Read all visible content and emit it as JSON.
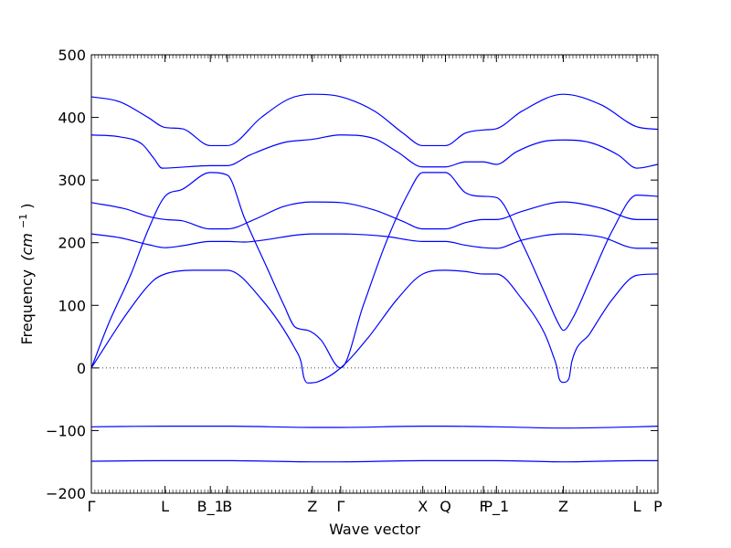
{
  "chart_data": {
    "type": "line",
    "title": "",
    "xlabel": "Wave vector",
    "ylabel": "Frequency",
    "ylabel_unit": "(cm",
    "ylabel_exp": "−1",
    "ylabel_close": ")",
    "ylim": [
      -200,
      500
    ],
    "yticks": [
      -200,
      -100,
      0,
      100,
      200,
      300,
      400,
      500
    ],
    "ytick_labels": [
      "−200",
      "−100",
      "0",
      "100",
      "200",
      "300",
      "400",
      "500"
    ],
    "zero_line": true,
    "grid": false,
    "legend": "none",
    "line_color": "#0000ff",
    "path_length": 100,
    "high_symmetry_points": [
      {
        "label": "Γ",
        "position": 0
      },
      {
        "label": "L",
        "position": 13
      },
      {
        "label": "B_1",
        "position": 21
      },
      {
        "label": "B",
        "position": 24
      },
      {
        "label": "Z",
        "position": 39
      },
      {
        "label": "Γ",
        "position": 44
      },
      {
        "label": "X",
        "position": 58.5
      },
      {
        "label": "Q",
        "position": 62.5
      },
      {
        "label": "F",
        "position": 69.2
      },
      {
        "label": "P_1",
        "position": 71.5
      },
      {
        "label": "Z",
        "position": 83.3
      },
      {
        "label": "L",
        "position": 96.3
      },
      {
        "label": "P",
        "position": 100
      }
    ],
    "series": [
      {
        "points": [
          [
            0,
            -149
          ],
          [
            13,
            -148
          ],
          [
            24,
            -148
          ],
          [
            39,
            -150
          ],
          [
            44,
            -150
          ],
          [
            58.5,
            -148
          ],
          [
            62.5,
            -148
          ],
          [
            71.5,
            -148
          ],
          [
            83.3,
            -150
          ],
          [
            96.3,
            -148
          ],
          [
            100,
            -148
          ]
        ]
      },
      {
        "points": [
          [
            0,
            -94
          ],
          [
            13,
            -93
          ],
          [
            24,
            -93
          ],
          [
            39,
            -95
          ],
          [
            44,
            -95
          ],
          [
            58.5,
            -93
          ],
          [
            62.5,
            -93
          ],
          [
            71.5,
            -94
          ],
          [
            83.3,
            -96
          ],
          [
            96.3,
            -94
          ],
          [
            100,
            -93
          ]
        ]
      },
      {
        "points": [
          [
            0,
            0
          ],
          [
            6.5,
            90
          ],
          [
            11,
            140
          ],
          [
            13,
            150
          ],
          [
            18,
            156
          ],
          [
            24,
            156
          ],
          [
            30,
            110
          ],
          [
            36,
            30
          ],
          [
            37,
            10
          ],
          [
            37.5,
            -15
          ],
          [
            38.2,
            -24
          ],
          [
            40,
            -22
          ],
          [
            44,
            0
          ],
          [
            49,
            50
          ],
          [
            54,
            110
          ],
          [
            58.5,
            150
          ],
          [
            62.5,
            156
          ],
          [
            66,
            154
          ],
          [
            69.2,
            150
          ],
          [
            71.5,
            150
          ],
          [
            76,
            110
          ],
          [
            80,
            55
          ],
          [
            81.5,
            20
          ],
          [
            82.2,
            0
          ],
          [
            82.5,
            -15
          ],
          [
            83.3,
            -23
          ],
          [
            84.3,
            -17
          ],
          [
            84.8,
            10
          ],
          [
            88,
            55
          ],
          [
            92,
            110
          ],
          [
            96.3,
            148
          ],
          [
            100,
            150
          ]
        ]
      },
      {
        "points": [
          [
            0,
            0
          ],
          [
            3,
            70
          ],
          [
            7,
            150
          ],
          [
            10,
            220
          ],
          [
            13,
            274
          ],
          [
            16,
            285
          ],
          [
            21,
            312
          ],
          [
            24,
            308
          ],
          [
            27,
            240
          ],
          [
            31,
            160
          ],
          [
            34,
            100
          ],
          [
            36,
            65
          ],
          [
            38.2,
            60
          ],
          [
            40.5,
            45
          ],
          [
            44,
            0
          ],
          [
            48,
            100
          ],
          [
            52,
            200
          ],
          [
            56,
            280
          ],
          [
            58.5,
            312
          ],
          [
            62.5,
            312
          ],
          [
            66,
            280
          ],
          [
            69.2,
            274
          ],
          [
            71.5,
            272
          ],
          [
            76,
            200
          ],
          [
            80,
            120
          ],
          [
            82.5,
            70
          ],
          [
            83.3,
            60
          ],
          [
            85,
            80
          ],
          [
            88,
            140
          ],
          [
            92,
            220
          ],
          [
            96.3,
            276
          ],
          [
            100,
            274
          ]
        ]
      },
      {
        "points": [
          [
            0,
            214
          ],
          [
            5,
            208
          ],
          [
            10,
            197
          ],
          [
            13,
            192
          ],
          [
            16,
            195
          ],
          [
            21,
            202
          ],
          [
            24,
            202
          ],
          [
            27,
            201
          ],
          [
            31,
            205
          ],
          [
            36,
            212
          ],
          [
            39,
            214
          ],
          [
            44,
            214
          ],
          [
            52,
            210
          ],
          [
            58.5,
            202
          ],
          [
            62.5,
            202
          ],
          [
            66,
            196
          ],
          [
            69.2,
            192
          ],
          [
            71.5,
            191
          ],
          [
            76,
            204
          ],
          [
            83.3,
            214
          ],
          [
            90,
            209
          ],
          [
            96.3,
            191
          ],
          [
            100,
            191
          ]
        ]
      },
      {
        "points": [
          [
            0,
            264
          ],
          [
            6,
            254
          ],
          [
            10,
            242
          ],
          [
            13,
            237
          ],
          [
            16,
            235
          ],
          [
            21,
            222
          ],
          [
            24,
            222
          ],
          [
            29,
            238
          ],
          [
            34,
            258
          ],
          [
            39,
            265
          ],
          [
            44,
            264
          ],
          [
            50,
            252
          ],
          [
            55,
            234
          ],
          [
            58.5,
            222
          ],
          [
            62.5,
            222
          ],
          [
            66,
            232
          ],
          [
            69.2,
            237
          ],
          [
            71.5,
            237
          ],
          [
            76,
            250
          ],
          [
            83.3,
            265
          ],
          [
            90,
            255
          ],
          [
            96.3,
            237
          ],
          [
            100,
            237
          ]
        ]
      },
      {
        "points": [
          [
            0,
            372
          ],
          [
            5,
            369
          ],
          [
            9,
            357
          ],
          [
            11,
            335
          ],
          [
            12.5,
            319
          ],
          [
            15,
            320
          ],
          [
            21,
            323
          ],
          [
            24,
            323
          ],
          [
            28,
            340
          ],
          [
            34,
            360
          ],
          [
            39,
            365
          ],
          [
            44,
            372
          ],
          [
            50,
            366
          ],
          [
            54,
            345
          ],
          [
            58.5,
            321
          ],
          [
            62.5,
            321
          ],
          [
            66,
            329
          ],
          [
            69.2,
            329
          ],
          [
            71.5,
            325
          ],
          [
            75,
            345
          ],
          [
            80,
            362
          ],
          [
            83.3,
            364
          ],
          [
            88,
            360
          ],
          [
            93,
            340
          ],
          [
            96.3,
            319
          ],
          [
            100,
            325
          ]
        ]
      },
      {
        "points": [
          [
            0,
            433
          ],
          [
            5,
            425
          ],
          [
            10,
            400
          ],
          [
            13,
            384
          ],
          [
            16,
            382
          ],
          [
            21,
            355
          ],
          [
            24,
            355
          ],
          [
            30,
            400
          ],
          [
            35,
            430
          ],
          [
            39,
            437
          ],
          [
            44,
            433
          ],
          [
            50,
            410
          ],
          [
            55,
            375
          ],
          [
            58.5,
            355
          ],
          [
            62.5,
            355
          ],
          [
            66,
            375
          ],
          [
            69.2,
            380
          ],
          [
            71.5,
            382
          ],
          [
            76,
            410
          ],
          [
            83.3,
            437
          ],
          [
            90,
            420
          ],
          [
            96.3,
            385
          ],
          [
            100,
            381
          ]
        ]
      }
    ]
  }
}
